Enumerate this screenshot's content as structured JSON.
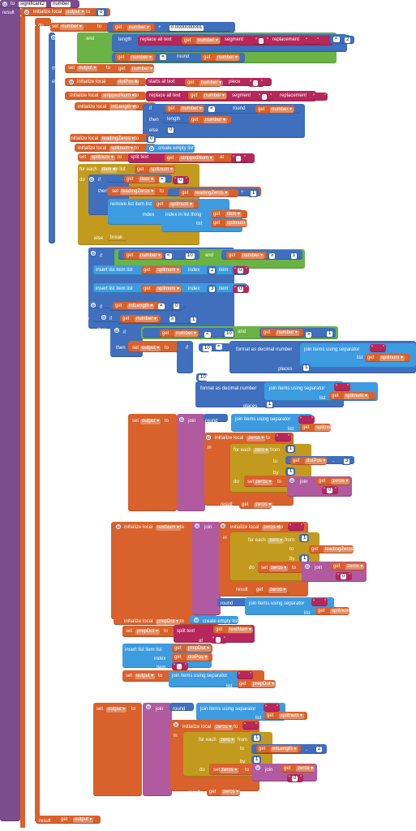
{
  "kw": {
    "to": "to",
    "result": "result",
    "init_local": "initialize local",
    "to_kw": "to",
    "in": "in",
    "do": "do",
    "set": "set",
    "get": "get",
    "if": "if",
    "then": "then",
    "else": "else",
    "and": "and",
    "length": "length",
    "replace_all_text": "replace all text",
    "segment": "segment",
    "replacement": "replacement",
    "round": "round",
    "starts_at_text": "starts at  text",
    "piece": "piece",
    "create_empty_list": "create empty list",
    "split_text": "split  text",
    "at": "at",
    "for_each": "for each",
    "in_list": "in list",
    "list": "list",
    "remove_list_item": "remove list item  list",
    "index": "index",
    "index_in_list_thing": "index in list  thing",
    "break": "break",
    "insert_list_item": "insert list item  list",
    "item": "item",
    "format_decimal": "format as decimal  number",
    "places": "places",
    "join_items_sep": "join items using separator",
    "join": "join",
    "from": "from",
    "by": "by",
    "text": "text"
  },
  "proc": {
    "name": "significant2",
    "param": "number"
  },
  "vars": {
    "output": "output",
    "number": "number",
    "dotPos": "dotPos",
    "strippedNum": "strippedNum",
    "intLength": "intLength",
    "leadingZeros": "leadingZeros",
    "splitnum": "splitnum",
    "item": "item",
    "zeros": "zeros",
    "zero": "zero",
    "textNum": "textNum",
    "prepDot": "prepDot"
  },
  "ops": {
    "plus": "+",
    "eq": "=",
    "lt": "<",
    "gte": "≥",
    "minus": "-"
  },
  "nums": {
    "n0": "0",
    "tiny": "0.0000000001",
    "n2": "2",
    "n1": "1",
    "n10": "10",
    "n3": "3"
  },
  "strs": {
    "dot": ".",
    "empty": " ",
    "zero_str": "0"
  }
}
